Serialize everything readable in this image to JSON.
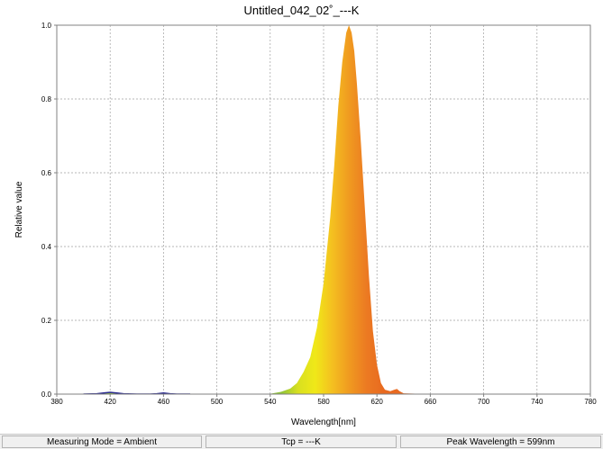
{
  "window": {
    "title": "Untitled_042_02˚_---K"
  },
  "status_bar": {
    "measuring_mode": "Measuring Mode = Ambient",
    "tcp": "Tcp = ---K",
    "peak_wavelength": "Peak Wavelength = 599nm"
  },
  "colors": {
    "grid": "#a0a0a0",
    "blue_trace": "#2b2b90",
    "fill_gradient": [
      "#8fc43a",
      "#d8e020",
      "#f0e818",
      "#f4c020",
      "#f09a20",
      "#ec7a22",
      "#e86a20"
    ]
  },
  "chart_data": {
    "type": "area",
    "title": "Untitled_042_02˚_---K",
    "xlabel": "Wavelength[nm]",
    "ylabel": "Relative value",
    "xlim": [
      380,
      780
    ],
    "ylim": [
      0,
      1.0
    ],
    "x_ticks": [
      380,
      420,
      460,
      500,
      540,
      580,
      620,
      660,
      700,
      740,
      780
    ],
    "y_ticks": [
      0.0,
      0.2,
      0.4,
      0.6,
      0.8,
      1.0
    ],
    "x_tick_labels": [
      "380",
      "420",
      "460",
      "500",
      "540",
      "580",
      "620",
      "660",
      "700",
      "740",
      "780"
    ],
    "y_tick_labels": [
      "0.0",
      "0.2",
      "0.4",
      "0.6",
      "0.8",
      "1.0"
    ],
    "grid": true,
    "legend": "none",
    "series": [
      {
        "x": [
          380,
          400,
          410,
          415,
          420,
          425,
          430,
          440,
          450,
          455,
          460,
          465,
          470,
          480,
          500,
          520,
          540,
          548,
          555,
          560,
          565,
          570,
          575,
          580,
          585,
          588,
          591,
          594,
          597,
          599,
          601,
          603,
          605,
          608,
          611,
          614,
          617,
          620,
          623,
          626,
          630,
          633,
          635,
          637,
          640,
          660,
          700,
          740,
          780
        ],
        "y": [
          0,
          0,
          0.001,
          0.003,
          0.005,
          0.003,
          0.001,
          0,
          0,
          0.001,
          0.003,
          0.001,
          0,
          0,
          0,
          0,
          0.001,
          0.006,
          0.015,
          0.03,
          0.06,
          0.1,
          0.18,
          0.3,
          0.48,
          0.62,
          0.78,
          0.9,
          0.98,
          1.0,
          0.98,
          0.93,
          0.84,
          0.68,
          0.5,
          0.32,
          0.17,
          0.08,
          0.03,
          0.012,
          0.008,
          0.012,
          0.014,
          0.008,
          0.002,
          0,
          0,
          0,
          0
        ]
      }
    ],
    "peak_wavelength": 599
  }
}
